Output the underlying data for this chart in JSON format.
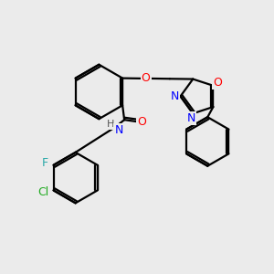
{
  "background_color": "#ebebeb",
  "bond_color": "#000000",
  "atom_colors": {
    "O": "#ff0000",
    "N": "#0000ff",
    "F": "#29a8a8",
    "Cl": "#1faa1f",
    "H": "#555555",
    "C": "#000000"
  },
  "figsize": [
    3.0,
    3.0
  ],
  "dpi": 100,
  "lw": 1.6
}
